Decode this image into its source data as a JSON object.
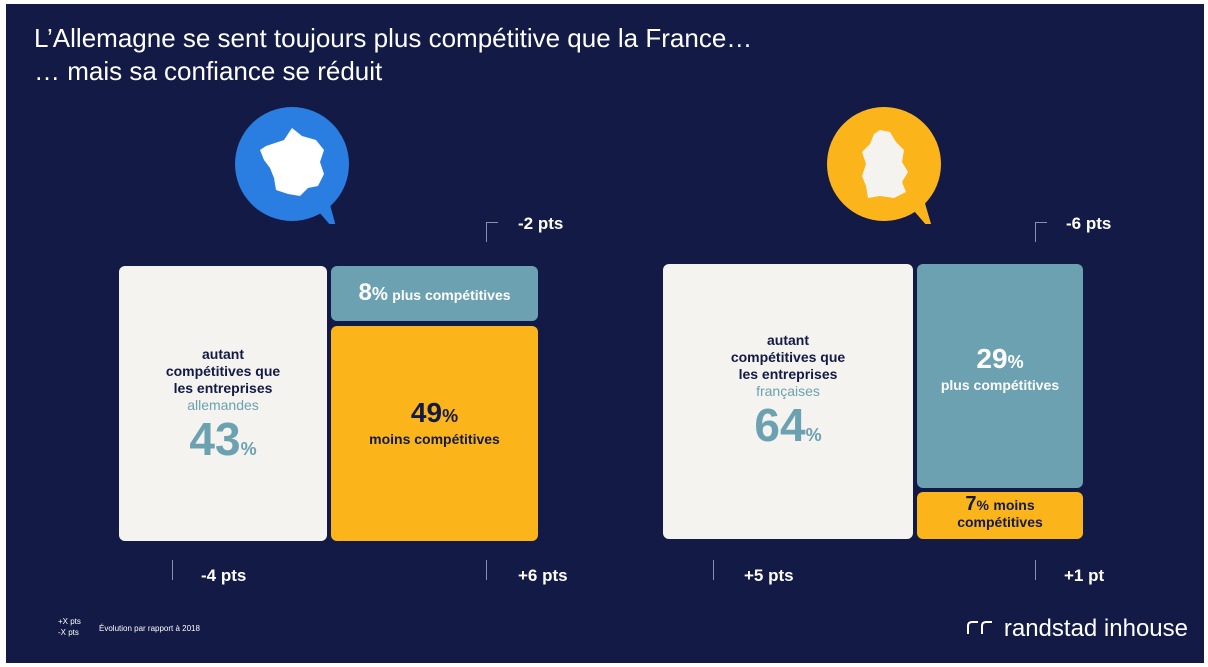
{
  "title_line1": "L’Allemagne se sent toujours plus compétitive que la France…",
  "title_line2": "… mais sa confiance se réduit",
  "colors": {
    "background": "#121a45",
    "france_bubble": "#2a7de1",
    "germany_bubble": "#fbb419",
    "same": "#f4f3ef",
    "more": "#6ba1b1",
    "less": "#fbb419"
  },
  "icons": {
    "france": "france-map-icon",
    "germany": "germany-map-icon",
    "brand": "randstad-logo-icon"
  },
  "chart_data": [
    {
      "type": "bar",
      "country": "France",
      "segments": [
        {
          "key": "same",
          "value": 43,
          "label_lines": [
            "autant",
            "compétitives que",
            "les entreprises"
          ],
          "label_accent": "allemandes",
          "delta": "-4 pts"
        },
        {
          "key": "more",
          "value": 8,
          "label": "plus compétitives",
          "delta": "-2 pts"
        },
        {
          "key": "less",
          "value": 49,
          "label": "moins compétitives",
          "delta": "+6 pts"
        }
      ]
    },
    {
      "type": "bar",
      "country": "Germany",
      "segments": [
        {
          "key": "same",
          "value": 64,
          "label_lines": [
            "autant",
            "compétitives que",
            "les entreprises"
          ],
          "label_accent": "françaises",
          "delta": "+5 pts"
        },
        {
          "key": "more",
          "value": 29,
          "label": "plus compétitives",
          "delta": "-6 pts"
        },
        {
          "key": "less",
          "value": 7,
          "label_lines": [
            "moins",
            "compétitives"
          ],
          "delta": "+1 pt"
        }
      ]
    }
  ],
  "legend": {
    "plus": "+X pts",
    "minus": "-X pts",
    "note": "Évolution par rapport à 2018"
  },
  "brand": "randstad inhouse",
  "pct": "%"
}
